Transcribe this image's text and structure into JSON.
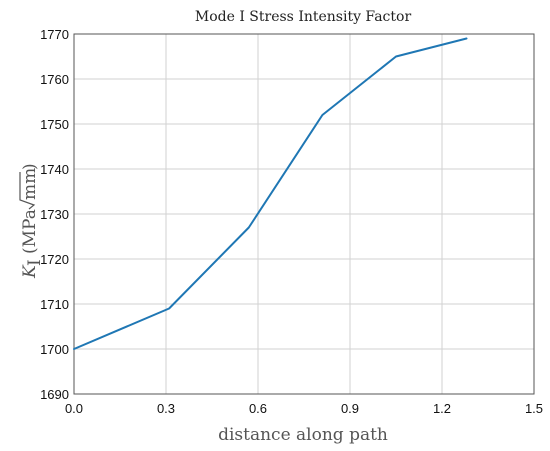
{
  "chart_data": {
    "type": "line",
    "title": "Mode I Stress Intensity Factor",
    "xlabel": "distance along path",
    "ylabel_main": "K",
    "ylabel_sub": "I",
    "ylabel_units_open": "(MPa",
    "ylabel_units_radicand": "mm",
    "ylabel_units_close": ")",
    "xlim": [
      0,
      1.5
    ],
    "ylim": [
      1690,
      1770
    ],
    "x_ticks": [
      "0.0",
      "0.3",
      "0.6",
      "0.9",
      "1.2",
      "1.5"
    ],
    "y_ticks": [
      "1690",
      "1700",
      "1710",
      "1720",
      "1730",
      "1740",
      "1750",
      "1760",
      "1770"
    ],
    "grid": true,
    "series": [
      {
        "color": "#1f77b4",
        "x": [
          0.0,
          0.31,
          0.57,
          0.81,
          1.05,
          1.28
        ],
        "y": [
          1700,
          1709,
          1727,
          1752,
          1765,
          1769
        ]
      }
    ]
  }
}
